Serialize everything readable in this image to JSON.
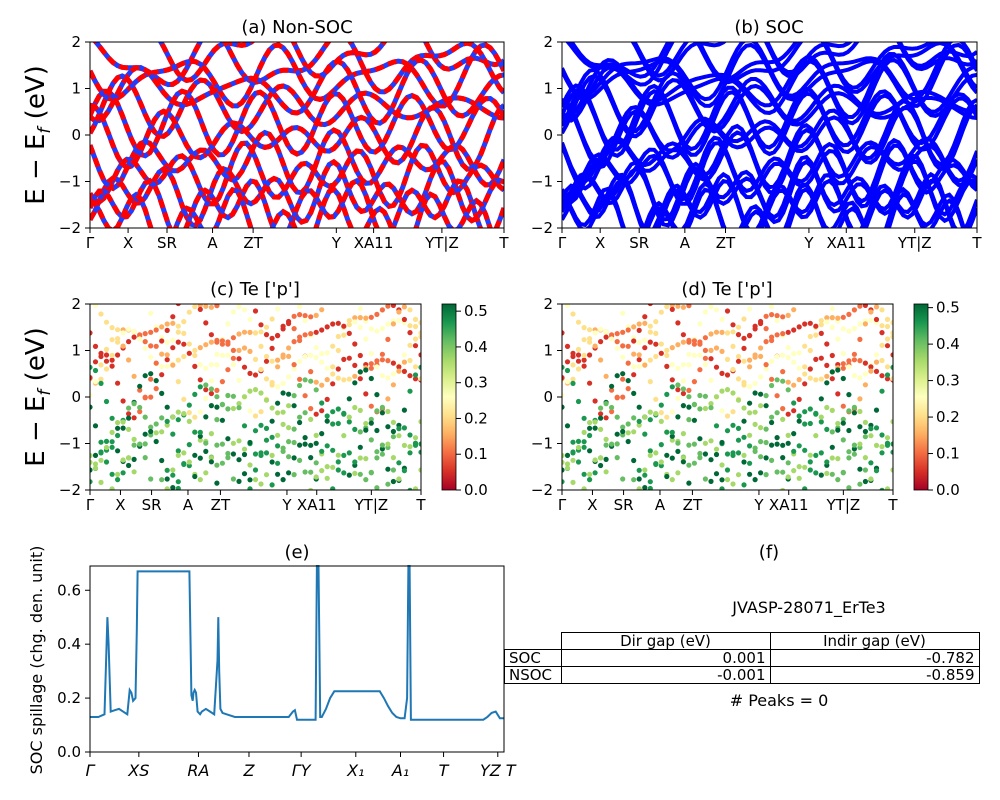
{
  "chart_data": [
    {
      "panel": "a",
      "type": "line",
      "title": "(a) Non-SOC",
      "ylabel": "E − E_f (eV)",
      "ylim": [
        -2,
        2
      ],
      "yticks": [
        "2",
        "1",
        "0",
        "−1",
        "−2"
      ],
      "xticklabels": [
        "Γ",
        "X",
        "SR",
        "A",
        "ZT",
        "Y",
        "XA11",
        "YT|Z",
        "T"
      ],
      "colors": [
        "#ff0000",
        "#1f3cff"
      ]
    },
    {
      "panel": "b",
      "type": "line",
      "title": "(b) SOC",
      "ylim": [
        -2,
        2
      ],
      "yticks": [
        "2",
        "1",
        "0",
        "−1",
        "−2"
      ],
      "xticklabels": [
        "Γ",
        "X",
        "SR",
        "A",
        "ZT",
        "Y",
        "XA11",
        "YT|Z",
        "T"
      ],
      "colors": [
        "#0000ff"
      ]
    },
    {
      "panel": "c",
      "type": "scatter",
      "title": "(c)  Te ['p']",
      "ylabel": "E − E_f (eV)",
      "ylim": [
        -2,
        2
      ],
      "yticks": [
        "2",
        "1",
        "0",
        "−1",
        "−2"
      ],
      "xticklabels": [
        "Γ",
        "X",
        "SR",
        "A",
        "ZT",
        "Y",
        "XA11",
        "YT|Z",
        "T"
      ],
      "colorbar": {
        "min": 0.0,
        "max": 0.52,
        "ticks": [
          "0.5",
          "0.4",
          "0.3",
          "0.2",
          "0.1",
          "0.0"
        ],
        "colormap": "RdYlGn"
      }
    },
    {
      "panel": "d",
      "type": "scatter",
      "title": "(d) Te ['p']",
      "ylim": [
        -2,
        2
      ],
      "yticks": [
        "2",
        "1",
        "0",
        "−1",
        "−2"
      ],
      "xticklabels": [
        "Γ",
        "X",
        "SR",
        "A",
        "ZT",
        "Y",
        "XA11",
        "YT|Z",
        "T"
      ],
      "colorbar": {
        "min": 0.0,
        "max": 0.51,
        "ticks": [
          "0.5",
          "0.4",
          "0.3",
          "0.2",
          "0.1",
          "0.0"
        ],
        "colormap": "RdYlGn"
      }
    },
    {
      "panel": "e",
      "type": "line",
      "title": "(e)",
      "ylabel": "SOC spillage (chg. den. unit)",
      "ylim": [
        0,
        0.69
      ],
      "xlim": [
        0,
        100
      ],
      "yticks": [
        "0.6",
        "0.4",
        "0.2",
        "0.0"
      ],
      "xticklabels": [
        "Γ",
        "XS",
        "RA",
        "Z",
        "ΓY",
        "X₁",
        "A₁",
        "T",
        "YZ T"
      ],
      "series": [
        {
          "color": "#1f77b4",
          "x": [
            0,
            2,
            3.5,
            4.2,
            4.5,
            5,
            6,
            7,
            8,
            9,
            9.6,
            10,
            10.4,
            11,
            11.3,
            11.5,
            12,
            13,
            14,
            15,
            16,
            17,
            18,
            19,
            20,
            21,
            22,
            23,
            24,
            24.5,
            24.8,
            25,
            25.3,
            25.6,
            26,
            26.6,
            27,
            28,
            29,
            30,
            30.8,
            31,
            31.2,
            31.5,
            32,
            33,
            35,
            40,
            45,
            48,
            49,
            49.5,
            50,
            51,
            53,
            54.5,
            54.8,
            55.2,
            55.6,
            56,
            57,
            58,
            59,
            60,
            61,
            62,
            63,
            64,
            65,
            66,
            67,
            68,
            69,
            70,
            71,
            72,
            73,
            74,
            75,
            76,
            76.6,
            76.9,
            77.2,
            77.5,
            78,
            80,
            85,
            90,
            95,
            96,
            97,
            98,
            99,
            100
          ],
          "y": [
            0.13,
            0.13,
            0.14,
            0.5,
            0.4,
            0.15,
            0.155,
            0.16,
            0.15,
            0.14,
            0.23,
            0.22,
            0.19,
            0.2,
            0.45,
            0.67,
            0.67,
            0.67,
            0.67,
            0.67,
            0.67,
            0.67,
            0.67,
            0.67,
            0.67,
            0.67,
            0.67,
            0.67,
            0.67,
            0.21,
            0.19,
            0.22,
            0.23,
            0.22,
            0.15,
            0.14,
            0.15,
            0.16,
            0.15,
            0.14,
            0.34,
            0.5,
            0.3,
            0.16,
            0.145,
            0.14,
            0.13,
            0.13,
            0.13,
            0.13,
            0.15,
            0.155,
            0.12,
            0.12,
            0.12,
            0.12,
            0.69,
            0.69,
            0.13,
            0.13,
            0.16,
            0.2,
            0.225,
            0.225,
            0.225,
            0.225,
            0.225,
            0.225,
            0.225,
            0.225,
            0.225,
            0.225,
            0.225,
            0.225,
            0.2,
            0.17,
            0.145,
            0.13,
            0.125,
            0.125,
            0.2,
            0.69,
            0.69,
            0.12,
            0.12,
            0.12,
            0.12,
            0.12,
            0.12,
            0.13,
            0.145,
            0.15,
            0.125,
            0.125
          ]
        }
      ]
    }
  ],
  "panel_f": {
    "title": "(f)",
    "material": "JVASP-28071_ErTe3",
    "table": {
      "columns": [
        "Dir gap (eV)",
        "Indir gap (eV)"
      ],
      "rows": [
        {
          "label": "SOC",
          "dir": "0.001",
          "indir": "-0.782"
        },
        {
          "label": "NSOC",
          "dir": "-0.001",
          "indir": "-0.859"
        }
      ]
    },
    "peaks": "# Peaks = 0"
  }
}
